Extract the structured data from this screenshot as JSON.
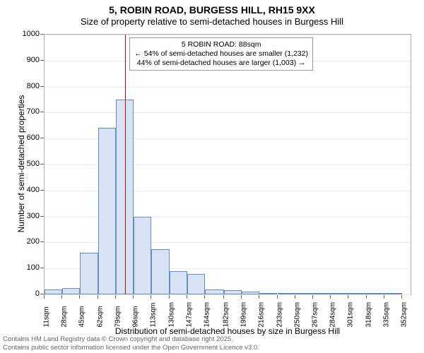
{
  "title": "5, ROBIN ROAD, BURGESS HILL, RH15 9XX",
  "subtitle": "Size of property relative to semi-detached houses in Burgess Hill",
  "y_axis_label": "Number of semi-detached properties",
  "x_axis_label": "Distribution of semi-detached houses by size in Burgess Hill",
  "footer_line1": "Contains HM Land Registry data © Crown copyright and database right 2025.",
  "footer_line2": "Contains public sector information licensed under the Open Government Licence v3.0.",
  "chart": {
    "type": "histogram",
    "background_color": "#ffffff",
    "grid_color": "#e8e8e8",
    "border_color": "#b0b0b0",
    "bar_fill": "#d7e3f4",
    "bar_stroke": "#6a8bc0",
    "reference_line_color": "#cc0000",
    "reference_value": 88,
    "xlim": [
      11,
      360
    ],
    "ylim": [
      0,
      1000
    ],
    "ytick_step": 100,
    "x_ticks": [
      11,
      28,
      45,
      62,
      79,
      96,
      113,
      130,
      147,
      164,
      182,
      199,
      216,
      233,
      250,
      267,
      284,
      301,
      318,
      335,
      352
    ],
    "x_tick_suffix": "sqm",
    "title_fontsize": 14,
    "subtitle_fontsize": 13,
    "axis_label_fontsize": 12,
    "tick_fontsize": 11,
    "bars": [
      {
        "x0": 11,
        "x1": 28,
        "y": 20
      },
      {
        "x0": 28,
        "x1": 45,
        "y": 25
      },
      {
        "x0": 45,
        "x1": 62,
        "y": 160
      },
      {
        "x0": 62,
        "x1": 79,
        "y": 640
      },
      {
        "x0": 79,
        "x1": 96,
        "y": 750
      },
      {
        "x0": 96,
        "x1": 113,
        "y": 300
      },
      {
        "x0": 113,
        "x1": 130,
        "y": 175
      },
      {
        "x0": 130,
        "x1": 147,
        "y": 90
      },
      {
        "x0": 147,
        "x1": 164,
        "y": 80
      },
      {
        "x0": 164,
        "x1": 182,
        "y": 20
      },
      {
        "x0": 182,
        "x1": 199,
        "y": 15
      },
      {
        "x0": 199,
        "x1": 216,
        "y": 10
      },
      {
        "x0": 216,
        "x1": 233,
        "y": 3
      },
      {
        "x0": 233,
        "x1": 250,
        "y": 2
      },
      {
        "x0": 250,
        "x1": 267,
        "y": 2
      },
      {
        "x0": 267,
        "x1": 284,
        "y": 1
      },
      {
        "x0": 284,
        "x1": 301,
        "y": 1
      },
      {
        "x0": 301,
        "x1": 318,
        "y": 0
      },
      {
        "x0": 318,
        "x1": 335,
        "y": 0
      },
      {
        "x0": 335,
        "x1": 352,
        "y": 1
      }
    ],
    "annotation": {
      "line1": "5 ROBIN ROAD: 88sqm",
      "line2": "← 54% of semi-detached houses are smaller (1,232)",
      "line3": "44% of semi-detached houses are larger (1,003) →",
      "fontsize": 10.5
    }
  }
}
